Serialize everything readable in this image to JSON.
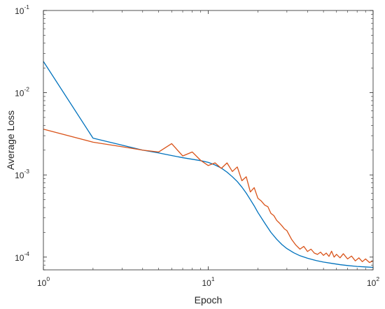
{
  "chart_data": {
    "type": "line",
    "title": "",
    "xlabel": "Epoch",
    "ylabel": "Average Loss",
    "x_scale": "log",
    "y_scale": "log",
    "xlim": [
      1,
      100
    ],
    "ylim": [
      7e-05,
      0.1
    ],
    "grid": false,
    "x_ticks": [
      {
        "value": 1,
        "base": "10",
        "exp": "0"
      },
      {
        "value": 10,
        "base": "10",
        "exp": "1"
      },
      {
        "value": 100,
        "base": "10",
        "exp": "2"
      }
    ],
    "y_ticks": [
      {
        "value": 0.1,
        "base": "10",
        "exp": "-1"
      },
      {
        "value": 0.01,
        "base": "10",
        "exp": "-2"
      },
      {
        "value": 0.001,
        "base": "10",
        "exp": "-3"
      },
      {
        "value": 0.0001,
        "base": "10",
        "exp": "-4"
      }
    ],
    "series": [
      {
        "color": "#0072BD",
        "x": [
          1,
          2,
          3,
          4,
          5,
          6,
          7,
          8,
          9,
          10,
          11,
          12,
          13,
          14,
          15,
          16,
          17,
          18,
          19,
          20,
          22,
          24,
          26,
          28,
          30,
          33,
          36,
          40,
          45,
          50,
          56,
          63,
          70,
          80,
          90,
          100
        ],
        "y": [
          0.024,
          0.0028,
          0.0023,
          0.002,
          0.00185,
          0.00172,
          0.00162,
          0.00155,
          0.00149,
          0.00142,
          0.00132,
          0.00121,
          0.00108,
          0.00095,
          0.00083,
          0.00071,
          0.0006,
          0.0005,
          0.00042,
          0.00035,
          0.00026,
          0.0002,
          0.000165,
          0.000142,
          0.000127,
          0.000113,
          0.000104,
          9.7e-05,
          9.1e-05,
          8.7e-05,
          8.4e-05,
          8.1e-05,
          7.9e-05,
          7.7e-05,
          7.6e-05,
          7.5e-05
        ]
      },
      {
        "color": "#D95319",
        "x": [
          1,
          2,
          3,
          4,
          5,
          6,
          7,
          8,
          9,
          10,
          11,
          12,
          13,
          14,
          15,
          16,
          17,
          18,
          19,
          20,
          21,
          22,
          23,
          24,
          25,
          26,
          27,
          28,
          29,
          30,
          32,
          34,
          36,
          38,
          40,
          42,
          44,
          46,
          48,
          50,
          52,
          54,
          56,
          58,
          60,
          63,
          66,
          70,
          74,
          78,
          82,
          86,
          90,
          95,
          100
        ],
        "y": [
          0.0036,
          0.0025,
          0.0022,
          0.002,
          0.0019,
          0.0024,
          0.0017,
          0.0019,
          0.0015,
          0.0013,
          0.0014,
          0.0012,
          0.0014,
          0.0011,
          0.00125,
          0.00085,
          0.00095,
          0.00062,
          0.0007,
          0.00052,
          0.00048,
          0.00043,
          0.00041,
          0.00034,
          0.00032,
          0.00028,
          0.00026,
          0.00024,
          0.00022,
          0.00021,
          0.000165,
          0.00014,
          0.000125,
          0.000135,
          0.000117,
          0.000125,
          0.000112,
          0.000108,
          0.000115,
          0.000105,
          0.000112,
          0.000102,
          0.000118,
          0.0001,
          0.000108,
          9.8e-05,
          0.00011,
          9.5e-05,
          0.000103,
          9e-05,
          9.8e-05,
          8.8e-05,
          9.5e-05,
          8.6e-05,
          9e-05
        ]
      }
    ]
  }
}
